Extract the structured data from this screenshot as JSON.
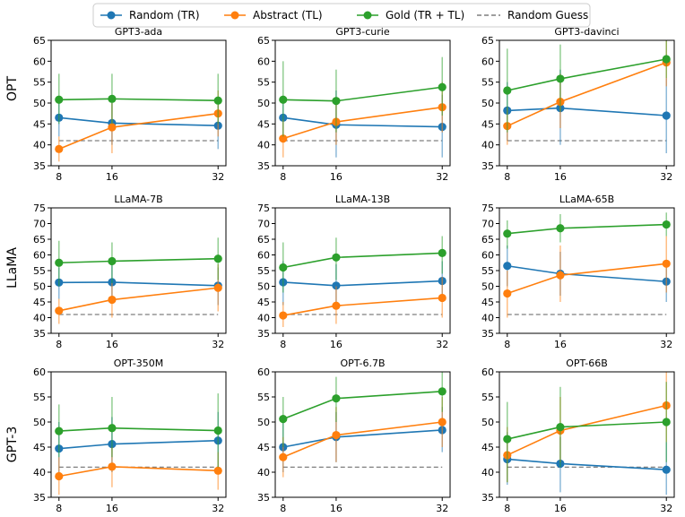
{
  "chart_data": {
    "type": "line",
    "x": [
      8,
      16,
      32
    ],
    "legend": {
      "placement": "top-center",
      "entries": [
        {
          "name": "Random (TR)",
          "color": "#1f77b4",
          "style": "line-marker"
        },
        {
          "name": "Abstract (TL)",
          "color": "#ff7f0e",
          "style": "line-marker"
        },
        {
          "name": "Gold (TR + TL)",
          "color": "#2ca02c",
          "style": "line-marker"
        },
        {
          "name": "Random Guess",
          "color": "#7f7f7f",
          "style": "dashed"
        }
      ]
    },
    "row_labels": [
      "OPT",
      "LLaMA",
      "GPT-3"
    ],
    "random_guess": 41,
    "panels": [
      {
        "title": "GPT3-ada",
        "ylim": [
          35,
          65
        ],
        "yticks": [
          35,
          40,
          45,
          50,
          55,
          60,
          65
        ],
        "series": [
          {
            "name": "Random (TR)",
            "values": [
              46.5,
              45.2,
              44.6
            ],
            "err": [
              [
                42,
                51
              ],
              [
                40,
                50
              ],
              [
                39,
                50
              ]
            ]
          },
          {
            "name": "Abstract (TL)",
            "values": [
              39,
              44.2,
              47.5
            ],
            "err": [
              [
                36,
                42
              ],
              [
                38,
                50
              ],
              [
                42,
                53
              ]
            ]
          },
          {
            "name": "Gold (TR + TL)",
            "values": [
              50.8,
              51,
              50.6
            ],
            "err": [
              [
                45,
                57
              ],
              [
                45,
                57
              ],
              [
                45,
                57
              ]
            ]
          }
        ]
      },
      {
        "title": "GPT3-curie",
        "ylim": [
          35,
          65
        ],
        "yticks": [
          35,
          40,
          45,
          50,
          55,
          60,
          65
        ],
        "series": [
          {
            "name": "Random (TR)",
            "values": [
              46.5,
              44.8,
              44.3
            ],
            "err": [
              [
                42,
                51
              ],
              [
                37,
                53
              ],
              [
                37,
                52
              ]
            ]
          },
          {
            "name": "Abstract (TL)",
            "values": [
              41.5,
              45.5,
              49
            ],
            "err": [
              [
                37,
                46
              ],
              [
                40,
                51
              ],
              [
                43,
                55
              ]
            ]
          },
          {
            "name": "Gold (TR + TL)",
            "values": [
              50.8,
              50.5,
              53.8
            ],
            "err": [
              [
                42,
                60
              ],
              [
                43,
                58
              ],
              [
                47,
                61
              ]
            ]
          }
        ]
      },
      {
        "title": "GPT3-davinci",
        "ylim": [
          35,
          65
        ],
        "yticks": [
          35,
          40,
          45,
          50,
          55,
          60,
          65
        ],
        "series": [
          {
            "name": "Random (TR)",
            "values": [
              48.2,
              48.8,
              47
            ],
            "err": [
              [
                41,
                55
              ],
              [
                40,
                58
              ],
              [
                38,
                56
              ]
            ]
          },
          {
            "name": "Abstract (TL)",
            "values": [
              44.5,
              50.3,
              59.7
            ],
            "err": [
              [
                40,
                49
              ],
              [
                44,
                57
              ],
              [
                54,
                65
              ]
            ]
          },
          {
            "name": "Gold (TR + TL)",
            "values": [
              53,
              55.8,
              60.5
            ],
            "err": [
              [
                43,
                63
              ],
              [
                48,
                64
              ],
              [
                56,
                65
              ]
            ]
          }
        ]
      },
      {
        "title": "LLaMA-7B",
        "ylim": [
          35,
          75
        ],
        "yticks": [
          35,
          40,
          45,
          50,
          55,
          60,
          65,
          70,
          75
        ],
        "series": [
          {
            "name": "Random (TR)",
            "values": [
              51.2,
              51.3,
              50.2
            ],
            "err": [
              [
                46,
                56
              ],
              [
                45,
                57
              ],
              [
                44,
                56
              ]
            ]
          },
          {
            "name": "Abstract (TL)",
            "values": [
              42.2,
              45.7,
              49.5
            ],
            "err": [
              [
                38,
                46
              ],
              [
                40,
                51
              ],
              [
                42,
                57
              ]
            ]
          },
          {
            "name": "Gold (TR + TL)",
            "values": [
              57.5,
              58,
              58.8
            ],
            "err": [
              [
                50,
                64.5
              ],
              [
                51,
                64
              ],
              [
                52,
                65.5
              ]
            ]
          }
        ]
      },
      {
        "title": "LLaMA-13B",
        "ylim": [
          35,
          75
        ],
        "yticks": [
          35,
          40,
          45,
          50,
          55,
          60,
          65,
          70,
          75
        ],
        "series": [
          {
            "name": "Random (TR)",
            "values": [
              51.3,
              50.2,
              51.7
            ],
            "err": [
              [
                44,
                58
              ],
              [
                44,
                57
              ],
              [
                45,
                58
              ]
            ]
          },
          {
            "name": "Abstract (TL)",
            "values": [
              40.7,
              43.8,
              46.3
            ],
            "err": [
              [
                37,
                45
              ],
              [
                38,
                50
              ],
              [
                40,
                53
              ]
            ]
          },
          {
            "name": "Gold (TR + TL)",
            "values": [
              56,
              59.2,
              60.6
            ],
            "err": [
              [
                48,
                64
              ],
              [
                52,
                65.5
              ],
              [
                54,
                66
              ]
            ]
          }
        ]
      },
      {
        "title": "LLaMA-65B",
        "ylim": [
          35,
          75
        ],
        "yticks": [
          35,
          40,
          45,
          50,
          55,
          60,
          65,
          70,
          75
        ],
        "series": [
          {
            "name": "Random (TR)",
            "values": [
              56.5,
              54,
              51.5
            ],
            "err": [
              [
                50,
                63
              ],
              [
                47,
                61
              ],
              [
                45,
                58
              ]
            ]
          },
          {
            "name": "Abstract (TL)",
            "values": [
              47.7,
              53.5,
              57.2
            ],
            "err": [
              [
                40,
                55
              ],
              [
                45,
                63
              ],
              [
                48,
                66
              ]
            ]
          },
          {
            "name": "Gold (TR + TL)",
            "values": [
              66.8,
              68.5,
              69.7
            ],
            "err": [
              [
                62,
                71
              ],
              [
                64,
                73
              ],
              [
                66,
                73.5
              ]
            ]
          }
        ]
      },
      {
        "title": "OPT-350M",
        "ylim": [
          35,
          60
        ],
        "yticks": [
          35,
          40,
          45,
          50,
          55,
          60
        ],
        "series": [
          {
            "name": "Random (TR)",
            "values": [
              44.7,
              45.6,
              46.3
            ],
            "err": [
              [
                40,
                50
              ],
              [
                40,
                51
              ],
              [
                40,
                52
              ]
            ]
          },
          {
            "name": "Abstract (TL)",
            "values": [
              39.2,
              41.1,
              40.3
            ],
            "err": [
              [
                35.5,
                43
              ],
              [
                37,
                45
              ],
              [
                36.5,
                44
              ]
            ]
          },
          {
            "name": "Gold (TR + TL)",
            "values": [
              48.2,
              48.8,
              48.3
            ],
            "err": [
              [
                43,
                53.5
              ],
              [
                43,
                55
              ],
              [
                41,
                55.7
              ]
            ]
          }
        ]
      },
      {
        "title": "OPT-6.7B",
        "ylim": [
          35,
          60
        ],
        "yticks": [
          35,
          40,
          45,
          50,
          55,
          60
        ],
        "series": [
          {
            "name": "Random (TR)",
            "values": [
              45,
              47,
              48.4
            ],
            "err": [
              [
                40,
                50
              ],
              [
                42,
                52
              ],
              [
                44,
                53
              ]
            ]
          },
          {
            "name": "Abstract (TL)",
            "values": [
              43,
              47.4,
              50
            ],
            "err": [
              [
                39,
                47
              ],
              [
                42,
                53
              ],
              [
                45,
                55
              ]
            ]
          },
          {
            "name": "Gold (TR + TL)",
            "values": [
              50.6,
              54.7,
              56.1
            ],
            "err": [
              [
                45,
                55
              ],
              [
                50,
                59
              ],
              [
                52,
                60
              ]
            ]
          }
        ]
      },
      {
        "title": "OPT-66B",
        "ylim": [
          35,
          60
        ],
        "yticks": [
          35,
          40,
          45,
          50,
          55,
          60
        ],
        "series": [
          {
            "name": "Random (TR)",
            "values": [
              42.6,
              41.7,
              40.5
            ],
            "err": [
              [
                37.5,
                48
              ],
              [
                36,
                47
              ],
              [
                35.5,
                46
              ]
            ]
          },
          {
            "name": "Abstract (TL)",
            "values": [
              43.4,
              48.3,
              53.3
            ],
            "err": [
              [
                38,
                49
              ],
              [
                42,
                55
              ],
              [
                46,
                60
              ]
            ]
          },
          {
            "name": "Gold (TR + TL)",
            "values": [
              46.6,
              49,
              50
            ],
            "err": [
              [
                38,
                54
              ],
              [
                41,
                57
              ],
              [
                42,
                58
              ]
            ]
          }
        ]
      }
    ]
  }
}
